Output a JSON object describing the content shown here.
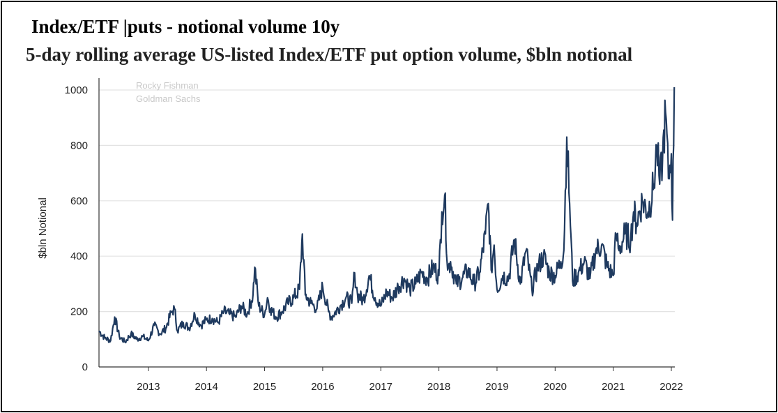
{
  "title": "Index/ETF |puts - notional volume 10y",
  "subtitle": "5-day rolling average US-listed Index/ETF put option volume, $bln notional",
  "colors": {
    "line": "#1f3a5f",
    "grid": "#e3e3e3",
    "axis": "#333333"
  },
  "chart_data": {
    "type": "line",
    "ylabel": "$bln Notional",
    "ylim": [
      0,
      1000
    ],
    "yticks": [
      "0",
      "200",
      "400",
      "600",
      "800",
      "1000"
    ],
    "xlim": [
      2012.15,
      2022.06
    ],
    "xticks": [
      "2013",
      "2014",
      "2015",
      "2016",
      "2017",
      "2018",
      "2019",
      "2020",
      "2021",
      "2022"
    ],
    "watermark": [
      "Rocky Fishman",
      "Goldman Sachs"
    ],
    "grid": "horizontal",
    "series": [
      {
        "x": [
          2012.15,
          2012.25,
          2012.35,
          2012.42,
          2012.5,
          2012.6,
          2012.7,
          2012.8,
          2012.9,
          2013.0,
          2013.1,
          2013.2,
          2013.3,
          2013.4,
          2013.45,
          2013.5,
          2013.6,
          2013.7,
          2013.8,
          2013.9,
          2014.0,
          2014.1,
          2014.2,
          2014.3,
          2014.4,
          2014.5,
          2014.6,
          2014.7,
          2014.8,
          2014.83,
          2014.9,
          2015.0,
          2015.05,
          2015.1,
          2015.2,
          2015.3,
          2015.4,
          2015.5,
          2015.6,
          2015.65,
          2015.7,
          2015.8,
          2015.9,
          2016.0,
          2016.1,
          2016.15,
          2016.3,
          2016.4,
          2016.5,
          2016.55,
          2016.6,
          2016.7,
          2016.8,
          2016.9,
          2017.0,
          2017.1,
          2017.2,
          2017.3,
          2017.4,
          2017.5,
          2017.6,
          2017.7,
          2017.8,
          2017.9,
          2018.0,
          2018.05,
          2018.1,
          2018.15,
          2018.2,
          2018.3,
          2018.4,
          2018.5,
          2018.6,
          2018.7,
          2018.8,
          2018.85,
          2018.9,
          2018.95,
          2019.0,
          2019.1,
          2019.2,
          2019.3,
          2019.4,
          2019.5,
          2019.6,
          2019.7,
          2019.8,
          2019.9,
          2020.0,
          2020.1,
          2020.15,
          2020.2,
          2020.25,
          2020.3,
          2020.4,
          2020.5,
          2020.6,
          2020.7,
          2020.8,
          2020.9,
          2021.0,
          2021.05,
          2021.1,
          2021.2,
          2021.3,
          2021.35,
          2021.4,
          2021.5,
          2021.6,
          2021.7,
          2021.75,
          2021.8,
          2021.85,
          2021.9,
          2021.95,
          2022.0,
          2022.02,
          2022.05
        ],
        "values": [
          130,
          105,
          95,
          180,
          110,
          90,
          120,
          100,
          110,
          95,
          150,
          120,
          140,
          200,
          210,
          130,
          160,
          140,
          190,
          150,
          170,
          175,
          160,
          200,
          190,
          180,
          220,
          190,
          260,
          360,
          220,
          190,
          250,
          210,
          180,
          200,
          230,
          250,
          280,
          480,
          260,
          230,
          210,
          290,
          200,
          180,
          220,
          250,
          230,
          340,
          260,
          240,
          330,
          250,
          220,
          270,
          250,
          290,
          320,
          280,
          300,
          340,
          320,
          360,
          330,
          560,
          620,
          350,
          380,
          300,
          320,
          350,
          300,
          340,
          480,
          590,
          350,
          440,
          280,
          330,
          320,
          460,
          300,
          420,
          280,
          360,
          400,
          340,
          330,
          380,
          420,
          830,
          590,
          310,
          340,
          380,
          320,
          420,
          440,
          360,
          330,
          480,
          420,
          480,
          460,
          560,
          520,
          600,
          560,
          660,
          800,
          660,
          760,
          920,
          680,
          770,
          530,
          1010
        ]
      }
    ]
  }
}
